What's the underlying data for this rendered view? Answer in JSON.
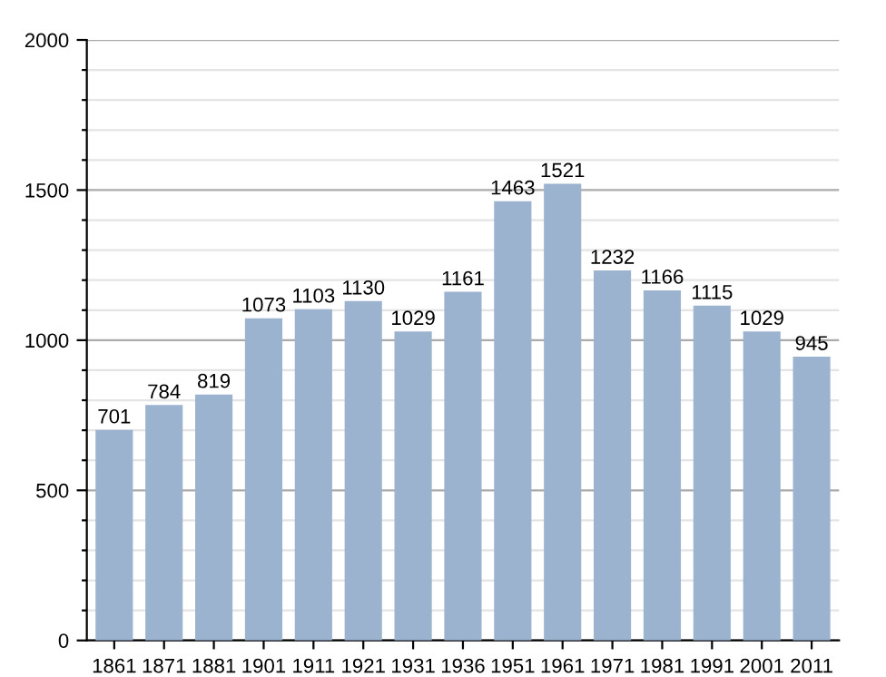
{
  "chart_data": {
    "type": "bar",
    "categories": [
      "1861",
      "1871",
      "1881",
      "1901",
      "1911",
      "1921",
      "1931",
      "1936",
      "1951",
      "1961",
      "1971",
      "1981",
      "1991",
      "2001",
      "2011"
    ],
    "values": [
      701,
      784,
      819,
      1073,
      1103,
      1130,
      1029,
      1161,
      1463,
      1521,
      1232,
      1166,
      1115,
      1029,
      945
    ],
    "color": "#9cb3d0",
    "data_labels": true,
    "grid": "y",
    "ylim": [
      0,
      2000
    ],
    "yticks": [
      0,
      {
        "value": 100,
        "label": null
      },
      {
        "value": 200,
        "label": null
      },
      {
        "value": 300,
        "label": null
      },
      {
        "value": 400,
        "label": null
      },
      500,
      {
        "value": 600,
        "label": null
      },
      {
        "value": 700,
        "label": null
      },
      {
        "value": 800,
        "label": null
      },
      {
        "value": 900,
        "label": null
      },
      1000,
      {
        "value": 1100,
        "label": null
      },
      {
        "value": 1200,
        "label": null
      },
      {
        "value": 1300,
        "label": null
      },
      {
        "value": 1400,
        "label": null
      },
      1500,
      {
        "value": 1600,
        "label": null
      },
      {
        "value": 1700,
        "label": null
      },
      {
        "value": 1800,
        "label": null
      },
      {
        "value": 1900,
        "label": null
      },
      2000
    ]
  }
}
